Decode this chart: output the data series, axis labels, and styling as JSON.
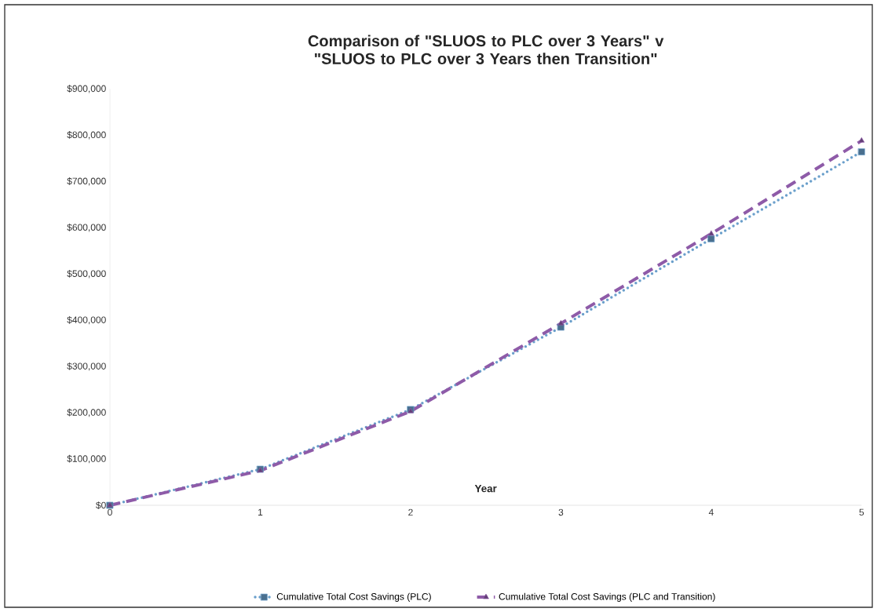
{
  "chart_data": {
    "type": "line",
    "title": "Comparison of \"SLUOS to PLC over 3 Years\" v \"SLUOS to PLC over 3 Years then Transition\"",
    "xlabel": "Year",
    "x": [
      0,
      1,
      2,
      3,
      4,
      5
    ],
    "series": [
      {
        "name": "Cumulative Total Cost Savings (PLC)",
        "color": "#6a9fcb",
        "marker": "square",
        "line_style": "dotted",
        "values": [
          0,
          78000,
          207000,
          385000,
          576000,
          764000
        ]
      },
      {
        "name": "Cumulative Total Cost Savings (PLC and Transition)",
        "color": "#8e5ba8",
        "marker": "triangle",
        "line_style": "dashed",
        "values": [
          0,
          75000,
          203000,
          393000,
          587000,
          788000
        ]
      }
    ],
    "xlim": [
      0,
      5
    ],
    "xticks": [
      0,
      1,
      2,
      3,
      4,
      5
    ],
    "ylim": [
      0,
      900000
    ],
    "yticks": [
      {
        "value": 0,
        "label": "$0"
      },
      {
        "value": 100000,
        "label": "$100,000"
      },
      {
        "value": 200000,
        "label": "$200,000"
      },
      {
        "value": 300000,
        "label": "$300,000"
      },
      {
        "value": 400000,
        "label": "$400,000"
      },
      {
        "value": 500000,
        "label": "$500,000"
      },
      {
        "value": 600000,
        "label": "$600,000"
      },
      {
        "value": 700000,
        "label": "$700,000"
      },
      {
        "value": 800000,
        "label": "$800,000"
      },
      {
        "value": 900000,
        "label": "$900,000"
      }
    ],
    "grid": false,
    "legend": "bottom"
  }
}
